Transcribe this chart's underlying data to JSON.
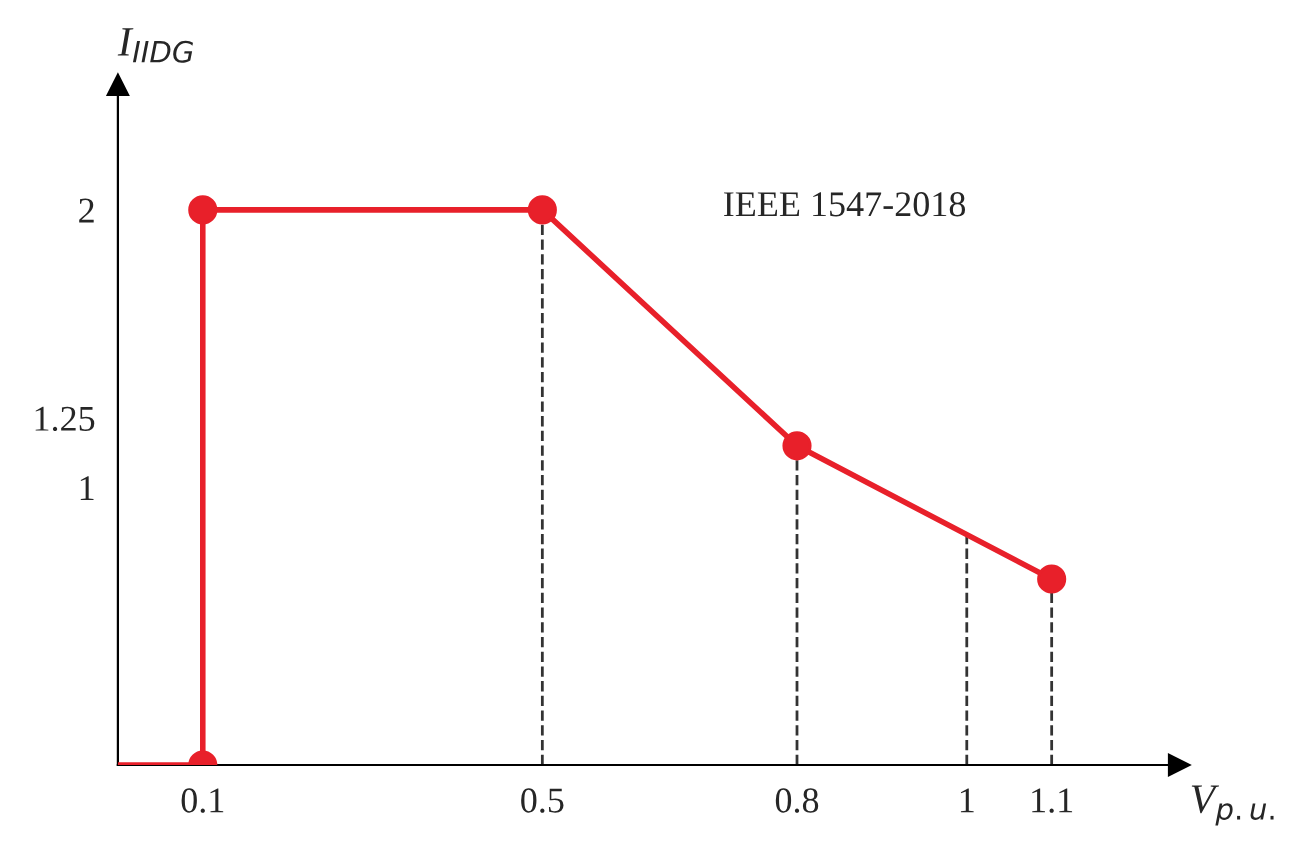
{
  "chart_data": {
    "type": "line",
    "xlabel": "V$_{p.u.}$",
    "ylabel": "I$_{IIDG}$",
    "annotations": [
      "IEEE 1547-2018"
    ],
    "series": [
      {
        "color": "#e8202a",
        "x": [
          0,
          0.1,
          0.1,
          0.5,
          0.8,
          1.1
        ],
        "values": [
          0,
          0,
          2,
          2,
          1.15,
          0.67
        ]
      },
      {
        "type": "scatter",
        "marker": "circle",
        "color": "#e8202a",
        "x": [
          0.1,
          0.1,
          0.5,
          0.8,
          1.1
        ],
        "values": [
          0,
          2,
          2,
          1.15,
          0.67
        ]
      }
    ],
    "ref_lines": [
      {
        "axis": "x",
        "value": 0.5,
        "color": "#333333",
        "line_style": "dashed"
      },
      {
        "axis": "x",
        "value": 0.8,
        "color": "#333333",
        "line_style": "dashed"
      },
      {
        "axis": "x",
        "value": 1,
        "color": "#333333",
        "line_style": "dashed"
      },
      {
        "axis": "x",
        "value": 1.1,
        "color": "#333333",
        "line_style": "dashed"
      }
    ],
    "xlim": [
      0,
      1.25
    ],
    "ylim": [
      0,
      2.45
    ],
    "xticks": [
      0.1,
      0.5,
      0.8,
      1,
      1.1
    ],
    "yticks": [
      1,
      1.25,
      2
    ],
    "grid": false,
    "legend": false
  }
}
